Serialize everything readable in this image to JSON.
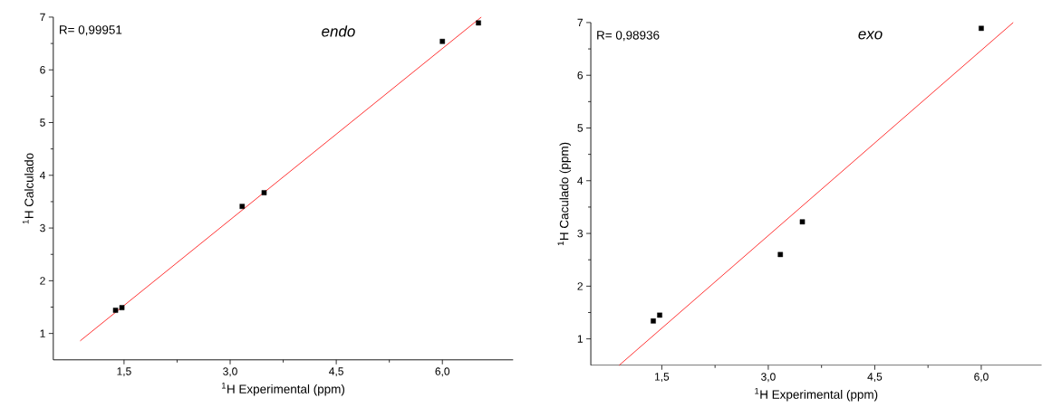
{
  "chart_data": [
    {
      "type": "scatter",
      "title": "endo",
      "xlabel": "$^{1}$H Experimental (ppm)",
      "ylabel": "$^{1}$H Calculado",
      "annotations": [
        "R= 0,99951"
      ],
      "xlim": [
        0.5,
        7
      ],
      "ylim": [
        0.5,
        7
      ],
      "xticks": [
        {
          "value": 1.5,
          "label": "1,5"
        },
        {
          "value": 3.0,
          "label": "3,0"
        },
        {
          "value": 4.5,
          "label": "4,5"
        },
        {
          "value": 6.0,
          "label": "6,0"
        }
      ],
      "yticks": [
        1,
        2,
        3,
        4,
        5,
        6,
        7
      ],
      "grid": false,
      "series": [
        {
          "type": "scatter",
          "marker": "square",
          "color": "#000000",
          "x": [
            1.38,
            1.47,
            3.17,
            3.48,
            6.0,
            6.51
          ],
          "values": [
            1.44,
            1.49,
            3.41,
            3.67,
            6.54,
            6.89
          ]
        },
        {
          "type": "line",
          "marker": "none",
          "color": "#ff0000",
          "x": [
            0.88,
            6.55
          ],
          "values": [
            0.86,
            7.0
          ]
        }
      ]
    },
    {
      "type": "scatter",
      "title": "exo",
      "xlabel": "$^{1}$H Experimental (ppm)",
      "ylabel": "$^{1}$H Caculado (ppm)",
      "annotations": [
        "R= 0,98936"
      ],
      "xlim": [
        0.5,
        6.85
      ],
      "ylim": [
        0.5,
        7
      ],
      "xticks": [
        {
          "value": 1.5,
          "label": "1,5"
        },
        {
          "value": 3.0,
          "label": "3,0"
        },
        {
          "value": 4.5,
          "label": "4,5"
        },
        {
          "value": 6.0,
          "label": "6,0"
        }
      ],
      "yticks": [
        1,
        2,
        3,
        4,
        5,
        6,
        7
      ],
      "grid": false,
      "series": [
        {
          "type": "scatter",
          "marker": "square",
          "color": "#000000",
          "x": [
            1.38,
            1.47,
            3.17,
            3.48,
            6.0
          ],
          "values": [
            1.34,
            1.45,
            2.6,
            3.22,
            6.89
          ]
        },
        {
          "type": "line",
          "marker": "none",
          "color": "#ff0000",
          "x": [
            0.9,
            6.45
          ],
          "values": [
            0.5,
            7.0
          ]
        }
      ]
    }
  ]
}
